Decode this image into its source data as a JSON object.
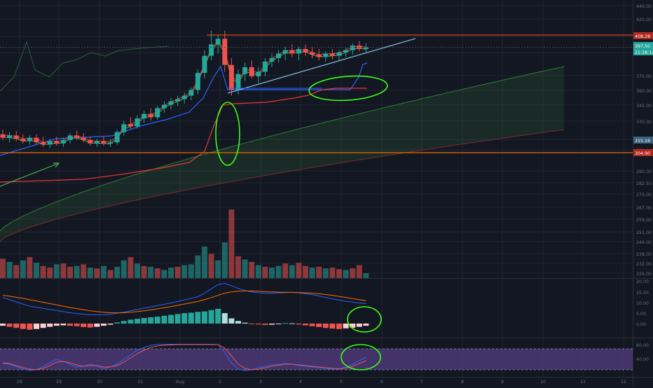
{
  "chart_data": [
    {
      "type": "candlestick",
      "panel": "price",
      "x_tick_labels": [
        "28",
        "29",
        "30",
        "31",
        "Aug",
        "2",
        "3",
        "4",
        "5",
        "6",
        "7",
        "8",
        "9",
        "10",
        "11",
        "12"
      ],
      "y_tick_labels": [
        "440.00",
        "420.00",
        "405.00",
        "390.00",
        "375.00",
        "360.00",
        "345.00",
        "330.00",
        "315.00",
        "300.00",
        "290.00",
        "282.50",
        "275.00",
        "267.00",
        "259.00",
        "251.00",
        "244.00",
        "238.00",
        "232.00",
        "226.00"
      ],
      "price_labels": [
        {
          "text": "408.28",
          "color": "#b2281e"
        },
        {
          "text": "397.50",
          "color": "#26a69a"
        },
        {
          "text": "21:28:14",
          "color": "#26a69a"
        },
        {
          "text": "315.19",
          "color": "#3a5f7a"
        },
        {
          "text": "304.90",
          "color": "#b2281e"
        }
      ],
      "resistance_level": 408.28,
      "support_level": 304.9,
      "last_price": 397.5,
      "candles": [
        {
          "o": 321,
          "h": 325,
          "l": 316,
          "c": 318
        },
        {
          "o": 318,
          "h": 323,
          "l": 314,
          "c": 320
        },
        {
          "o": 320,
          "h": 324,
          "l": 315,
          "c": 317
        },
        {
          "o": 317,
          "h": 321,
          "l": 313,
          "c": 315
        },
        {
          "o": 315,
          "h": 320,
          "l": 312,
          "c": 318
        },
        {
          "o": 318,
          "h": 321,
          "l": 312,
          "c": 314
        },
        {
          "o": 314,
          "h": 319,
          "l": 310,
          "c": 312
        },
        {
          "o": 312,
          "h": 317,
          "l": 309,
          "c": 315
        },
        {
          "o": 315,
          "h": 319,
          "l": 311,
          "c": 313
        },
        {
          "o": 313,
          "h": 318,
          "l": 310,
          "c": 316
        },
        {
          "o": 316,
          "h": 322,
          "l": 313,
          "c": 320
        },
        {
          "o": 320,
          "h": 324,
          "l": 316,
          "c": 318
        },
        {
          "o": 318,
          "h": 322,
          "l": 314,
          "c": 316
        },
        {
          "o": 316,
          "h": 319,
          "l": 311,
          "c": 313
        },
        {
          "o": 313,
          "h": 317,
          "l": 310,
          "c": 315
        },
        {
          "o": 315,
          "h": 319,
          "l": 311,
          "c": 313
        },
        {
          "o": 313,
          "h": 317,
          "l": 310,
          "c": 314
        },
        {
          "o": 314,
          "h": 325,
          "l": 312,
          "c": 323
        },
        {
          "o": 323,
          "h": 333,
          "l": 320,
          "c": 330
        },
        {
          "o": 330,
          "h": 336,
          "l": 326,
          "c": 328
        },
        {
          "o": 328,
          "h": 338,
          "l": 326,
          "c": 335
        },
        {
          "o": 335,
          "h": 342,
          "l": 331,
          "c": 339
        },
        {
          "o": 339,
          "h": 344,
          "l": 333,
          "c": 336
        },
        {
          "o": 336,
          "h": 346,
          "l": 334,
          "c": 344
        },
        {
          "o": 344,
          "h": 350,
          "l": 340,
          "c": 347
        },
        {
          "o": 347,
          "h": 353,
          "l": 343,
          "c": 350
        },
        {
          "o": 350,
          "h": 355,
          "l": 346,
          "c": 352
        },
        {
          "o": 352,
          "h": 358,
          "l": 348,
          "c": 355
        },
        {
          "o": 355,
          "h": 362,
          "l": 351,
          "c": 360
        },
        {
          "o": 360,
          "h": 378,
          "l": 356,
          "c": 375
        },
        {
          "o": 375,
          "h": 395,
          "l": 370,
          "c": 390
        },
        {
          "o": 390,
          "h": 412,
          "l": 386,
          "c": 400
        },
        {
          "o": 400,
          "h": 408,
          "l": 392,
          "c": 405
        },
        {
          "o": 405,
          "h": 412,
          "l": 376,
          "c": 382
        },
        {
          "o": 382,
          "h": 388,
          "l": 355,
          "c": 360
        },
        {
          "o": 360,
          "h": 378,
          "l": 356,
          "c": 374
        },
        {
          "o": 374,
          "h": 384,
          "l": 368,
          "c": 380
        },
        {
          "o": 380,
          "h": 386,
          "l": 370,
          "c": 372
        },
        {
          "o": 372,
          "h": 380,
          "l": 366,
          "c": 376
        },
        {
          "o": 376,
          "h": 388,
          "l": 372,
          "c": 385
        },
        {
          "o": 385,
          "h": 392,
          "l": 380,
          "c": 388
        },
        {
          "o": 388,
          "h": 395,
          "l": 384,
          "c": 392
        },
        {
          "o": 392,
          "h": 398,
          "l": 386,
          "c": 395
        },
        {
          "o": 395,
          "h": 400,
          "l": 389,
          "c": 392
        },
        {
          "o": 392,
          "h": 398,
          "l": 386,
          "c": 396
        },
        {
          "o": 396,
          "h": 400,
          "l": 390,
          "c": 393
        },
        {
          "o": 393,
          "h": 398,
          "l": 388,
          "c": 391
        },
        {
          "o": 391,
          "h": 396,
          "l": 386,
          "c": 389
        },
        {
          "o": 389,
          "h": 394,
          "l": 385,
          "c": 392
        },
        {
          "o": 392,
          "h": 396,
          "l": 387,
          "c": 390
        },
        {
          "o": 390,
          "h": 395,
          "l": 386,
          "c": 393
        },
        {
          "o": 393,
          "h": 397,
          "l": 389,
          "c": 395
        },
        {
          "o": 395,
          "h": 401,
          "l": 391,
          "c": 399
        },
        {
          "o": 399,
          "h": 403,
          "l": 394,
          "c": 396
        },
        {
          "o": 396,
          "h": 401,
          "l": 393,
          "c": 397.5
        }
      ]
    },
    {
      "type": "bar",
      "panel": "volume",
      "values": [
        48,
        40,
        32,
        44,
        52,
        38,
        30,
        26,
        34,
        36,
        28,
        30,
        34,
        26,
        24,
        30,
        20,
        28,
        44,
        52,
        36,
        30,
        28,
        24,
        20,
        26,
        28,
        32,
        34,
        56,
        78,
        60,
        44,
        88,
        170,
        54,
        46,
        40,
        32,
        28,
        26,
        30,
        36,
        32,
        38,
        30,
        26,
        28,
        24,
        26,
        22,
        20,
        24,
        32,
        12
      ],
      "colors": [
        "down",
        "up",
        "down",
        "up",
        "down",
        "up",
        "down",
        "down",
        "up",
        "down",
        "down",
        "up",
        "down",
        "up",
        "down",
        "up",
        "down",
        "up",
        "up",
        "down",
        "up",
        "down",
        "up",
        "down",
        "up",
        "up",
        "down",
        "up",
        "up",
        "up",
        "up",
        "down",
        "up",
        "up",
        "down",
        "down",
        "up",
        "down",
        "up",
        "down",
        "up",
        "up",
        "down",
        "up",
        "down",
        "down",
        "up",
        "down",
        "up",
        "down",
        "down",
        "up",
        "down",
        "down",
        "up"
      ]
    },
    {
      "type": "macd",
      "panel": "macd",
      "y_tick_labels": [
        "20.00",
        "15.00",
        "10.00",
        "5.00",
        "0.00"
      ],
      "histogram": [
        -1,
        -1.5,
        -2,
        -2.5,
        -2.8,
        -2.5,
        -2,
        -1.5,
        -1,
        -0.8,
        -1,
        -1.2,
        -1.6,
        -1.8,
        -1.5,
        -1,
        -0.5,
        0.5,
        1.2,
        1.8,
        2.2,
        2.6,
        2.9,
        3.2,
        3.6,
        4,
        4.4,
        4.8,
        5,
        5.4,
        5.6,
        6.2,
        6.8,
        4.8,
        2.4,
        1.2,
        0.4,
        -0.2,
        -0.4,
        -0.6,
        -0.5,
        -0.3,
        0.2,
        0.1,
        -0.4,
        -0.8,
        -1.2,
        -1.6,
        -2,
        -2.3,
        -2.5,
        -2.2,
        -1.9,
        -1.5,
        -1
      ],
      "macd_line": [
        12,
        11,
        10,
        9,
        8,
        7.5,
        7,
        6.5,
        6,
        5.5,
        5,
        4.6,
        4.3,
        4.1,
        4,
        4.1,
        4.3,
        4.8,
        5.3,
        5.9,
        6.5,
        7.1,
        7.7,
        8.3,
        8.9,
        9.5,
        10.2,
        10.9,
        11.6,
        12.4,
        14,
        16,
        18,
        18.5,
        17.5,
        16.2,
        15.2,
        14.6,
        14.2,
        14,
        14,
        14.1,
        14.3,
        14.4,
        14.2,
        13.8,
        13.3,
        12.7,
        12,
        11.4,
        10.8,
        10.3,
        9.9,
        9.5,
        9.2
      ],
      "signal_line": [
        13,
        12.6,
        12.1,
        11.6,
        11,
        10.4,
        9.8,
        9.2,
        8.6,
        8,
        7.4,
        6.9,
        6.4,
        5.9,
        5.5,
        5.2,
        5,
        4.9,
        5,
        5.2,
        5.5,
        5.9,
        6.3,
        6.8,
        7.3,
        7.8,
        8.4,
        9,
        9.6,
        10.2,
        11,
        12,
        13,
        14,
        14.6,
        14.9,
        15,
        15,
        14.9,
        14.7,
        14.6,
        14.5,
        14.4,
        14.4,
        14.3,
        14.2,
        14,
        13.7,
        13.4,
        13,
        12.5,
        12,
        11.5,
        11,
        10.5
      ]
    },
    {
      "type": "line",
      "panel": "stochastic_rsi",
      "y_tick_labels": [
        "80.00",
        "40.00"
      ],
      "k_line": [
        38,
        36,
        28,
        22,
        18,
        20,
        30,
        40,
        50,
        44,
        36,
        28,
        30,
        36,
        30,
        24,
        28,
        36,
        50,
        62,
        76,
        84,
        90,
        92,
        93,
        93,
        93,
        93,
        93,
        93,
        93,
        93,
        92,
        70,
        40,
        22,
        18,
        20,
        26,
        30,
        34,
        36,
        38,
        36,
        32,
        30,
        28,
        26,
        24,
        22,
        22,
        28,
        36,
        46,
        56
      ],
      "d_line": [
        40,
        38,
        32,
        26,
        22,
        20,
        24,
        32,
        42,
        44,
        40,
        34,
        30,
        32,
        32,
        28,
        28,
        32,
        42,
        54,
        66,
        76,
        84,
        88,
        90,
        91,
        92,
        92,
        92,
        92,
        92,
        92,
        92,
        82,
        60,
        36,
        24,
        20,
        22,
        26,
        30,
        33,
        36,
        36,
        34,
        32,
        30,
        28,
        26,
        24,
        23,
        25,
        30,
        38,
        46
      ]
    }
  ]
}
